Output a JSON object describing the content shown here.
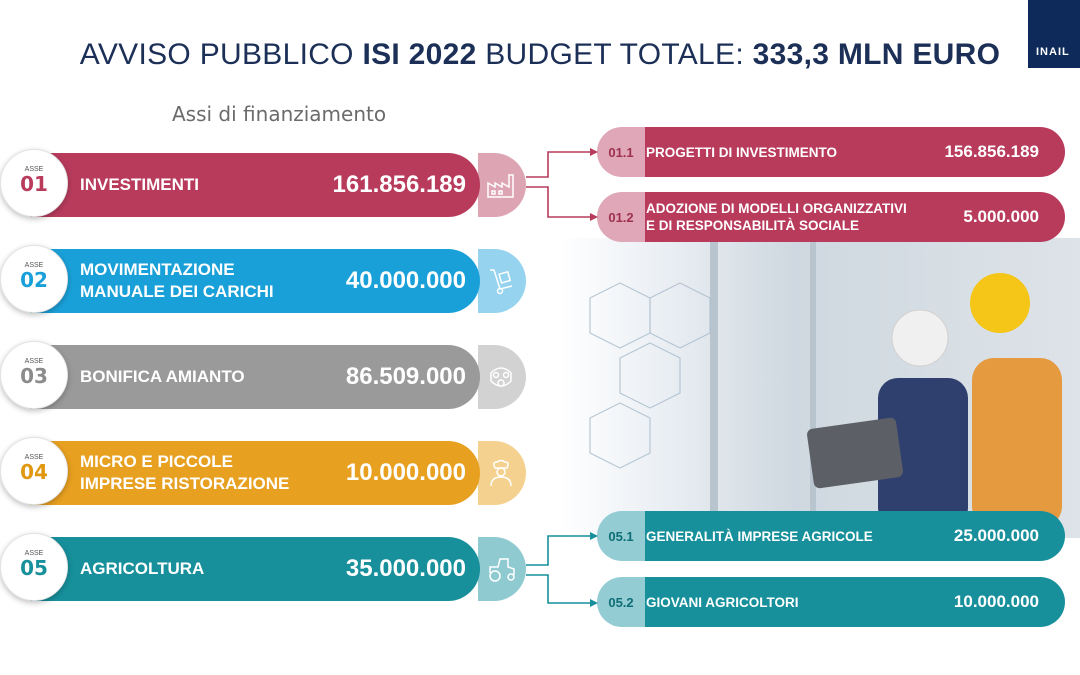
{
  "header": {
    "title_part1": "AVVISO PUBBLICO ",
    "title_part2": "ISI 2022",
    "title_part3": " BUDGET TOTALE: ",
    "title_part4": "333,3 MLN EURO",
    "logo_text": "INAIL"
  },
  "subtitle": "Assi di finanziamento",
  "axes": [
    {
      "asse": "ASSE",
      "num": "01",
      "label_line1": "INVESTIMENTI",
      "label_line2": "",
      "value": "161.856.189",
      "icon": "factory-icon",
      "color": "#b83b5c"
    },
    {
      "asse": "ASSE",
      "num": "02",
      "label_line1": "MOVIMENTAZIONE",
      "label_line2": "MANUALE DEI CARICHI",
      "value": "40.000.000",
      "icon": "hand-truck-icon",
      "color": "#1aa0d8"
    },
    {
      "asse": "ASSE",
      "num": "03",
      "label_line1": "BONIFICA AMIANTO",
      "label_line2": "",
      "value": "86.509.000",
      "icon": "gas-mask-icon",
      "color": "#9a9a9a"
    },
    {
      "asse": "ASSE",
      "num": "04",
      "label_line1": "MICRO E PICCOLE",
      "label_line2": "IMPRESE RISTORAZIONE",
      "value": "10.000.000",
      "icon": "chef-icon",
      "color": "#e8a020"
    },
    {
      "asse": "ASSE",
      "num": "05",
      "label_line1": "AGRICOLTURA",
      "label_line2": "",
      "value": "35.000.000",
      "icon": "tractor-icon",
      "color": "#17909c"
    }
  ],
  "sub_axes": [
    {
      "code": "01.1",
      "label_line1": "PROGETTI DI INVESTIMENTO",
      "label_line2": "",
      "value": "156.856.189"
    },
    {
      "code": "01.2",
      "label_line1": "ADOZIONE DI MODELLI ORGANIZZATIVI",
      "label_line2": "E DI RESPONSABILITÀ SOCIALE",
      "value": "5.000.000"
    },
    {
      "code": "05.1",
      "label_line1": "GENERALITÀ IMPRESE AGRICOLE",
      "label_line2": "",
      "value": "25.000.000"
    },
    {
      "code": "05.2",
      "label_line1": "GIOVANI AGRICOLTORI",
      "label_line2": "",
      "value": "10.000.000"
    }
  ]
}
